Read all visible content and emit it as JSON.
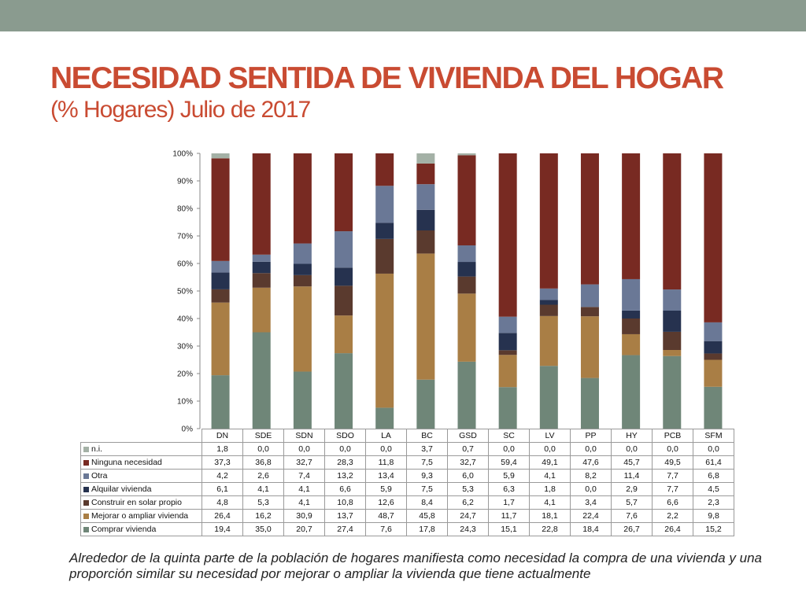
{
  "slide": {
    "title": "NECESIDAD SENTIDA DE VIVIENDA DEL HOGAR",
    "subtitle": "(% Hogares) Julio de 2017",
    "caption": "Alrededor de la quinta parte de la población de hogares manifiesta como necesidad la compra de una vivienda y una proporción similar su necesidad por mejorar o ampliar la vivienda que tiene actualmente",
    "colors": {
      "topbar": "#8a9b8f",
      "title": "#c94b32"
    }
  },
  "chart_data": {
    "type": "bar",
    "stacked": "percent",
    "ylim": [
      0,
      100
    ],
    "yticks": [
      "0%",
      "10%",
      "20%",
      "30%",
      "40%",
      "50%",
      "60%",
      "70%",
      "80%",
      "90%",
      "100%"
    ],
    "categories": [
      "DN",
      "SDE",
      "SDN",
      "SDO",
      "LA",
      "BC",
      "GSD",
      "SC",
      "LV",
      "PP",
      "HY",
      "PCB",
      "SFM"
    ],
    "series": [
      {
        "name": "Comprar vivienda",
        "color": "#6f8678",
        "values": [
          "19,4",
          "35,0",
          "20,7",
          "27,4",
          "7,6",
          "17,8",
          "24,3",
          "15,1",
          "22,8",
          "18,4",
          "26,7",
          "26,4",
          "15,2"
        ]
      },
      {
        "name": "Mejorar o  ampliar vivienda",
        "color": "#a97e45",
        "values": [
          "26,4",
          "16,2",
          "30,9",
          "13,7",
          "48,7",
          "45,8",
          "24,7",
          "11,7",
          "18,1",
          "22,4",
          "7,6",
          "2,2",
          "9,8"
        ]
      },
      {
        "name": "Construir en solar propio",
        "color": "#5a3a2e",
        "values": [
          "4,8",
          "5,3",
          "4,1",
          "10,8",
          "12,6",
          "8,4",
          "6,2",
          "1,7",
          "4,1",
          "3,4",
          "5,7",
          "6,6",
          "2,3"
        ]
      },
      {
        "name": "Alquilar vivienda",
        "color": "#26324f",
        "values": [
          "6,1",
          "4,1",
          "4,1",
          "6,6",
          "5,9",
          "7,5",
          "5,3",
          "6,3",
          "1,8",
          "0,0",
          "2,9",
          "7,7",
          "4,5"
        ]
      },
      {
        "name": "Otra",
        "color": "#6a7896",
        "values": [
          "4,2",
          "2,6",
          "7,4",
          "13,2",
          "13,4",
          "9,3",
          "6,0",
          "5,9",
          "4,1",
          "8,2",
          "11,4",
          "7,7",
          "6,8"
        ]
      },
      {
        "name": "Ninguna necesidad",
        "color": "#782a22",
        "values": [
          "37,3",
          "36,8",
          "32,7",
          "28,3",
          "11,8",
          "7,5",
          "32,7",
          "59,4",
          "49,1",
          "47,6",
          "45,7",
          "49,5",
          "61,4"
        ]
      },
      {
        "name": "n.i.",
        "color": "#a4b1a6",
        "values": [
          "1,8",
          "0,0",
          "0,0",
          "0,0",
          "0,0",
          "3,7",
          "0,7",
          "0,0",
          "0,0",
          "0,0",
          "0,0",
          "0,0",
          "0,0"
        ]
      }
    ],
    "table_row_order": [
      "n.i.",
      "Ninguna necesidad",
      "Otra",
      "Alquilar vivienda",
      "Construir en solar propio",
      "Mejorar o  ampliar vivienda",
      "Comprar vivienda"
    ]
  }
}
